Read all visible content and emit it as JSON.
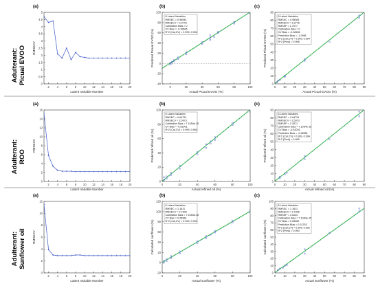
{
  "rows": [
    {
      "label_line1": "Adulterant:",
      "label_line2": "Picual EVOO"
    },
    {
      "label_line1": "Adulterant:",
      "label_line2": "ROO"
    },
    {
      "label_line1": "Adulterant:",
      "label_line2": "Sunflower oil"
    }
  ],
  "panel_letters": [
    "(a)",
    "(b)",
    "(c)"
  ],
  "colors": {
    "points": "#3b55c8",
    "fit_line": "#2fbf2f",
    "target_line": "#4a7fd0",
    "zero_line": "#9a9a9a",
    "axis": "#333333"
  },
  "chart_data": [
    {
      "id": "r0a",
      "type": "line",
      "title": "",
      "xlabel": "Latent Variable Number",
      "ylabel": "RMSECV",
      "xlim": [
        1,
        20
      ],
      "ylim": [
        0,
        5
      ],
      "xticks": [
        2,
        4,
        6,
        8,
        10,
        12,
        14,
        16,
        18,
        20
      ],
      "yticks": [
        0,
        0.5,
        1,
        1.5,
        2,
        2.5,
        3,
        3.5,
        4,
        4.5,
        5
      ],
      "x": [
        1,
        2,
        3,
        4,
        5,
        6,
        7,
        8,
        9,
        10,
        11,
        12,
        13,
        14,
        15,
        16,
        17,
        18,
        19,
        20
      ],
      "y": [
        4.7,
        4.3,
        4.4,
        2.1,
        1.8,
        2.5,
        1.7,
        2.2,
        1.9,
        1.85,
        1.8,
        1.8,
        1.8,
        1.8,
        1.8,
        1.8,
        1.8,
        1.8,
        1.8,
        1.8
      ]
    },
    {
      "id": "r0b",
      "type": "scatter",
      "title": "",
      "xlabel": "Actual Picual EVOO (%)",
      "ylabel": "Predicted Picual EVOO (%)",
      "xlim": [
        -10,
        100
      ],
      "ylim": [
        -40,
        100
      ],
      "xticks": [
        0,
        20,
        40,
        60,
        80,
        100
      ],
      "yticks": [
        -40,
        -20,
        0,
        20,
        40,
        60,
        80,
        100
      ],
      "stats": [
        "8 Latent Variables",
        "RMSEC = 0.95083",
        "RMSECV = 2.3776",
        "Calibration Bias = 0",
        "CV Bias = -0.32606",
        "R^2 (Cal,CV) = 0.999, 0.994"
      ],
      "points_x": [
        0,
        0,
        2,
        2,
        5,
        5,
        10,
        10,
        20,
        20,
        40,
        40,
        50,
        50,
        50,
        55,
        60,
        60,
        80,
        80,
        100,
        100
      ],
      "points_y": [
        -2,
        1,
        0,
        3,
        4,
        7,
        9,
        12,
        18,
        22,
        38,
        42,
        46,
        50,
        55,
        52,
        60,
        62,
        78,
        81,
        98,
        100
      ],
      "fit_line": [
        [
          -10,
          -10
        ],
        [
          100,
          100
        ]
      ],
      "target_line": [
        [
          -10,
          -10
        ],
        [
          100,
          100
        ]
      ],
      "zero_line": 0
    },
    {
      "id": "r0c",
      "type": "scatter",
      "title": "",
      "xlabel": "Actual Picual EVOO (%)",
      "ylabel": "Predicted Picual EVOO (%)",
      "xlim": [
        0,
        90
      ],
      "ylim": [
        0,
        90
      ],
      "xticks": [
        0,
        10,
        20,
        30,
        40,
        50,
        60,
        70,
        80,
        90
      ],
      "yticks": [
        0,
        10,
        20,
        30,
        40,
        50,
        60,
        70,
        80,
        90
      ],
      "stats": [
        "8 Latent Variables",
        "RMSEC = 0.95083",
        "RMSECV = 2.3776",
        "RMSEP = 1.7077",
        "Calibration Bias = 0",
        "CV Bias = -0.32606",
        "Prediction Bias = -1.0981",
        "R^2 (Cal,CV) = 0.999, 0.994",
        "R^2 (Pred) = 0.998"
      ],
      "points_x": [
        2,
        3,
        5,
        10,
        10,
        30,
        30,
        55,
        85,
        85
      ],
      "points_y": [
        2,
        4,
        5,
        9,
        10,
        29,
        31,
        53,
        83,
        86
      ],
      "fit_line": [
        [
          0,
          0
        ],
        [
          90,
          90
        ]
      ],
      "target_line": [
        [
          0,
          0
        ],
        [
          90,
          90
        ]
      ]
    },
    {
      "id": "r1a",
      "type": "line",
      "title": "",
      "xlabel": "Latent Variable Number",
      "ylabel": "RMSECV",
      "xlim": [
        1,
        20
      ],
      "ylim": [
        0,
        16
      ],
      "xticks": [
        2,
        4,
        6,
        8,
        10,
        12,
        14,
        16,
        18,
        20
      ],
      "yticks": [
        0,
        2,
        4,
        6,
        8,
        10,
        12,
        14,
        16
      ],
      "x": [
        1,
        2,
        3,
        4,
        5,
        6,
        7,
        8,
        9,
        10,
        11,
        12,
        13,
        14,
        15,
        16,
        17,
        18,
        19,
        20
      ],
      "y": [
        15.2,
        5.8,
        3.4,
        2.5,
        2.3,
        2.3,
        2.3,
        2.2,
        2.2,
        2.2,
        2.2,
        2.2,
        2.2,
        2.2,
        2.2,
        2.2,
        2.2,
        2.2,
        2.2,
        2.2
      ]
    },
    {
      "id": "r1b",
      "type": "scatter",
      "title": "",
      "xlabel": "Actual refined oil (%)",
      "ylabel": "Predicted refined oil (%)",
      "xlim": [
        0,
        100
      ],
      "ylim": [
        0,
        100
      ],
      "xticks": [
        0,
        20,
        40,
        60,
        80,
        100
      ],
      "yticks": [
        0,
        20,
        40,
        60,
        80,
        100
      ],
      "stats": [
        "8 Latent Variables",
        "RMSEC = 0.64724",
        "RMSECV = 2.5973",
        "Calibration Bias = 7.1054e-15",
        "CV Bias = -0.51001",
        "R^2 (Cal,CV) = 0.999, 0.994"
      ],
      "points_x": [
        2,
        2,
        5,
        5,
        10,
        10,
        20,
        20,
        40,
        40,
        50,
        50,
        55,
        55,
        60,
        60,
        80,
        80,
        100,
        100
      ],
      "points_y": [
        2,
        6,
        4,
        7,
        9,
        12,
        18,
        22,
        38,
        41,
        47,
        52,
        53,
        56,
        58,
        62,
        79,
        82,
        97,
        100
      ],
      "fit_line": [
        [
          0,
          0
        ],
        [
          100,
          100
        ]
      ],
      "target_line": [
        [
          0,
          0
        ],
        [
          100,
          100
        ]
      ]
    },
    {
      "id": "r1c",
      "type": "scatter",
      "title": "",
      "xlabel": "Actual refined oil (%)",
      "ylabel": "Predicted refined oil (%)",
      "xlim": [
        0,
        90
      ],
      "ylim": [
        0,
        90
      ],
      "xticks": [
        0,
        10,
        20,
        30,
        40,
        50,
        60,
        70,
        80,
        90
      ],
      "yticks": [
        0,
        10,
        20,
        30,
        40,
        50,
        60,
        70,
        80,
        90
      ],
      "stats": [
        "8 Latent Variables",
        "RMSEC = 0.64724",
        "RMSECV = 2.5973",
        "RMSEP = 2.3971",
        "Calibration Bias = 7.1054e-15",
        "CV Bias = -0.51001",
        "Prediction Bias = -0.28351",
        "R^2 (Cal,CV) = 0.999, 0.994",
        "R^2 (Pred) = 0.995"
      ],
      "points_x": [
        5,
        5,
        10,
        12,
        30,
        30,
        55,
        85,
        85
      ],
      "points_y": [
        6,
        4,
        9,
        11,
        28,
        32,
        53,
        82,
        88
      ],
      "fit_line": [
        [
          0,
          0
        ],
        [
          90,
          90
        ]
      ],
      "target_line": [
        [
          0,
          0
        ],
        [
          90,
          90
        ]
      ]
    },
    {
      "id": "r2a",
      "type": "line",
      "title": "",
      "xlabel": "Latent Variable Number",
      "ylabel": "RMSECV",
      "xlim": [
        1,
        20
      ],
      "ylim": [
        0,
        12
      ],
      "xticks": [
        2,
        4,
        6,
        8,
        10,
        12,
        14,
        16,
        18,
        20
      ],
      "yticks": [
        0,
        2,
        4,
        6,
        8,
        10,
        12
      ],
      "x": [
        1,
        2,
        3,
        4,
        5,
        6,
        7,
        8,
        9,
        10,
        11,
        12,
        13,
        14,
        15,
        16,
        17,
        18,
        19,
        20
      ],
      "y": [
        11.5,
        3.9,
        3.0,
        2.9,
        2.9,
        2.9,
        2.9,
        3.0,
        3.0,
        2.9,
        2.9,
        2.9,
        2.9,
        2.9,
        2.9,
        2.9,
        2.9,
        2.9,
        2.9,
        2.9
      ]
    },
    {
      "id": "r2b",
      "type": "scatter",
      "title": "",
      "xlabel": "Actual sunflower (%)",
      "ylabel": "Calculated sunflower (%)",
      "xlim": [
        0,
        100
      ],
      "ylim": [
        -20,
        120
      ],
      "xticks": [
        0,
        20,
        40,
        60,
        80,
        100
      ],
      "yticks": [
        -20,
        0,
        20,
        40,
        60,
        80,
        100,
        120
      ],
      "stats": [
        "8 Latent Variables",
        "RMSEC = 1.1611",
        "RMSECV = 2.7306",
        "Calibration Bias = 7.1054e-15",
        "CV Bias = 0.25060",
        "R^2 (Cal,CV) = 0.999, 0.992"
      ],
      "points_x": [
        2,
        2,
        5,
        5,
        10,
        10,
        20,
        20,
        40,
        40,
        50,
        50,
        55,
        60,
        60,
        80,
        80,
        100,
        100
      ],
      "points_y": [
        0,
        4,
        3,
        7,
        9,
        13,
        18,
        22,
        38,
        42,
        48,
        52,
        55,
        59,
        62,
        79,
        82,
        99,
        103
      ],
      "fit_line": [
        [
          0,
          0
        ],
        [
          100,
          100
        ]
      ],
      "target_line": [
        [
          0,
          0
        ],
        [
          100,
          100
        ]
      ]
    },
    {
      "id": "r2c",
      "type": "scatter",
      "title": "",
      "xlabel": "Actual sunflower (%)",
      "ylabel": "Calculated sunflower (%)",
      "xlim": [
        0,
        90
      ],
      "ylim": [
        0,
        100
      ],
      "xticks": [
        0,
        10,
        20,
        30,
        40,
        50,
        60,
        70,
        80,
        90
      ],
      "yticks": [
        0,
        10,
        20,
        30,
        40,
        50,
        60,
        70,
        80,
        90,
        100
      ],
      "stats": [
        "8 Latent Variables",
        "RMSEC = 1.1611",
        "RMSECV = 2.7306",
        "RMSEP = 3.1623",
        "Calibration Bias = 7.1054e-15",
        "CV Bias = 0.25060",
        "Prediction Bias = 0.31753",
        "R^2 (Cal,CV) = 0.999, 0.992",
        "R^2 (Pred) = 0.990"
      ],
      "points_x": [
        3,
        5,
        8,
        10,
        12,
        30,
        30,
        55,
        85,
        85
      ],
      "points_y": [
        4,
        6,
        7,
        10,
        11,
        27,
        33,
        56,
        86,
        90
      ],
      "fit_line": [
        [
          0,
          0
        ],
        [
          90,
          90
        ]
      ],
      "target_line": [
        [
          0,
          0
        ],
        [
          90,
          90
        ]
      ]
    }
  ]
}
